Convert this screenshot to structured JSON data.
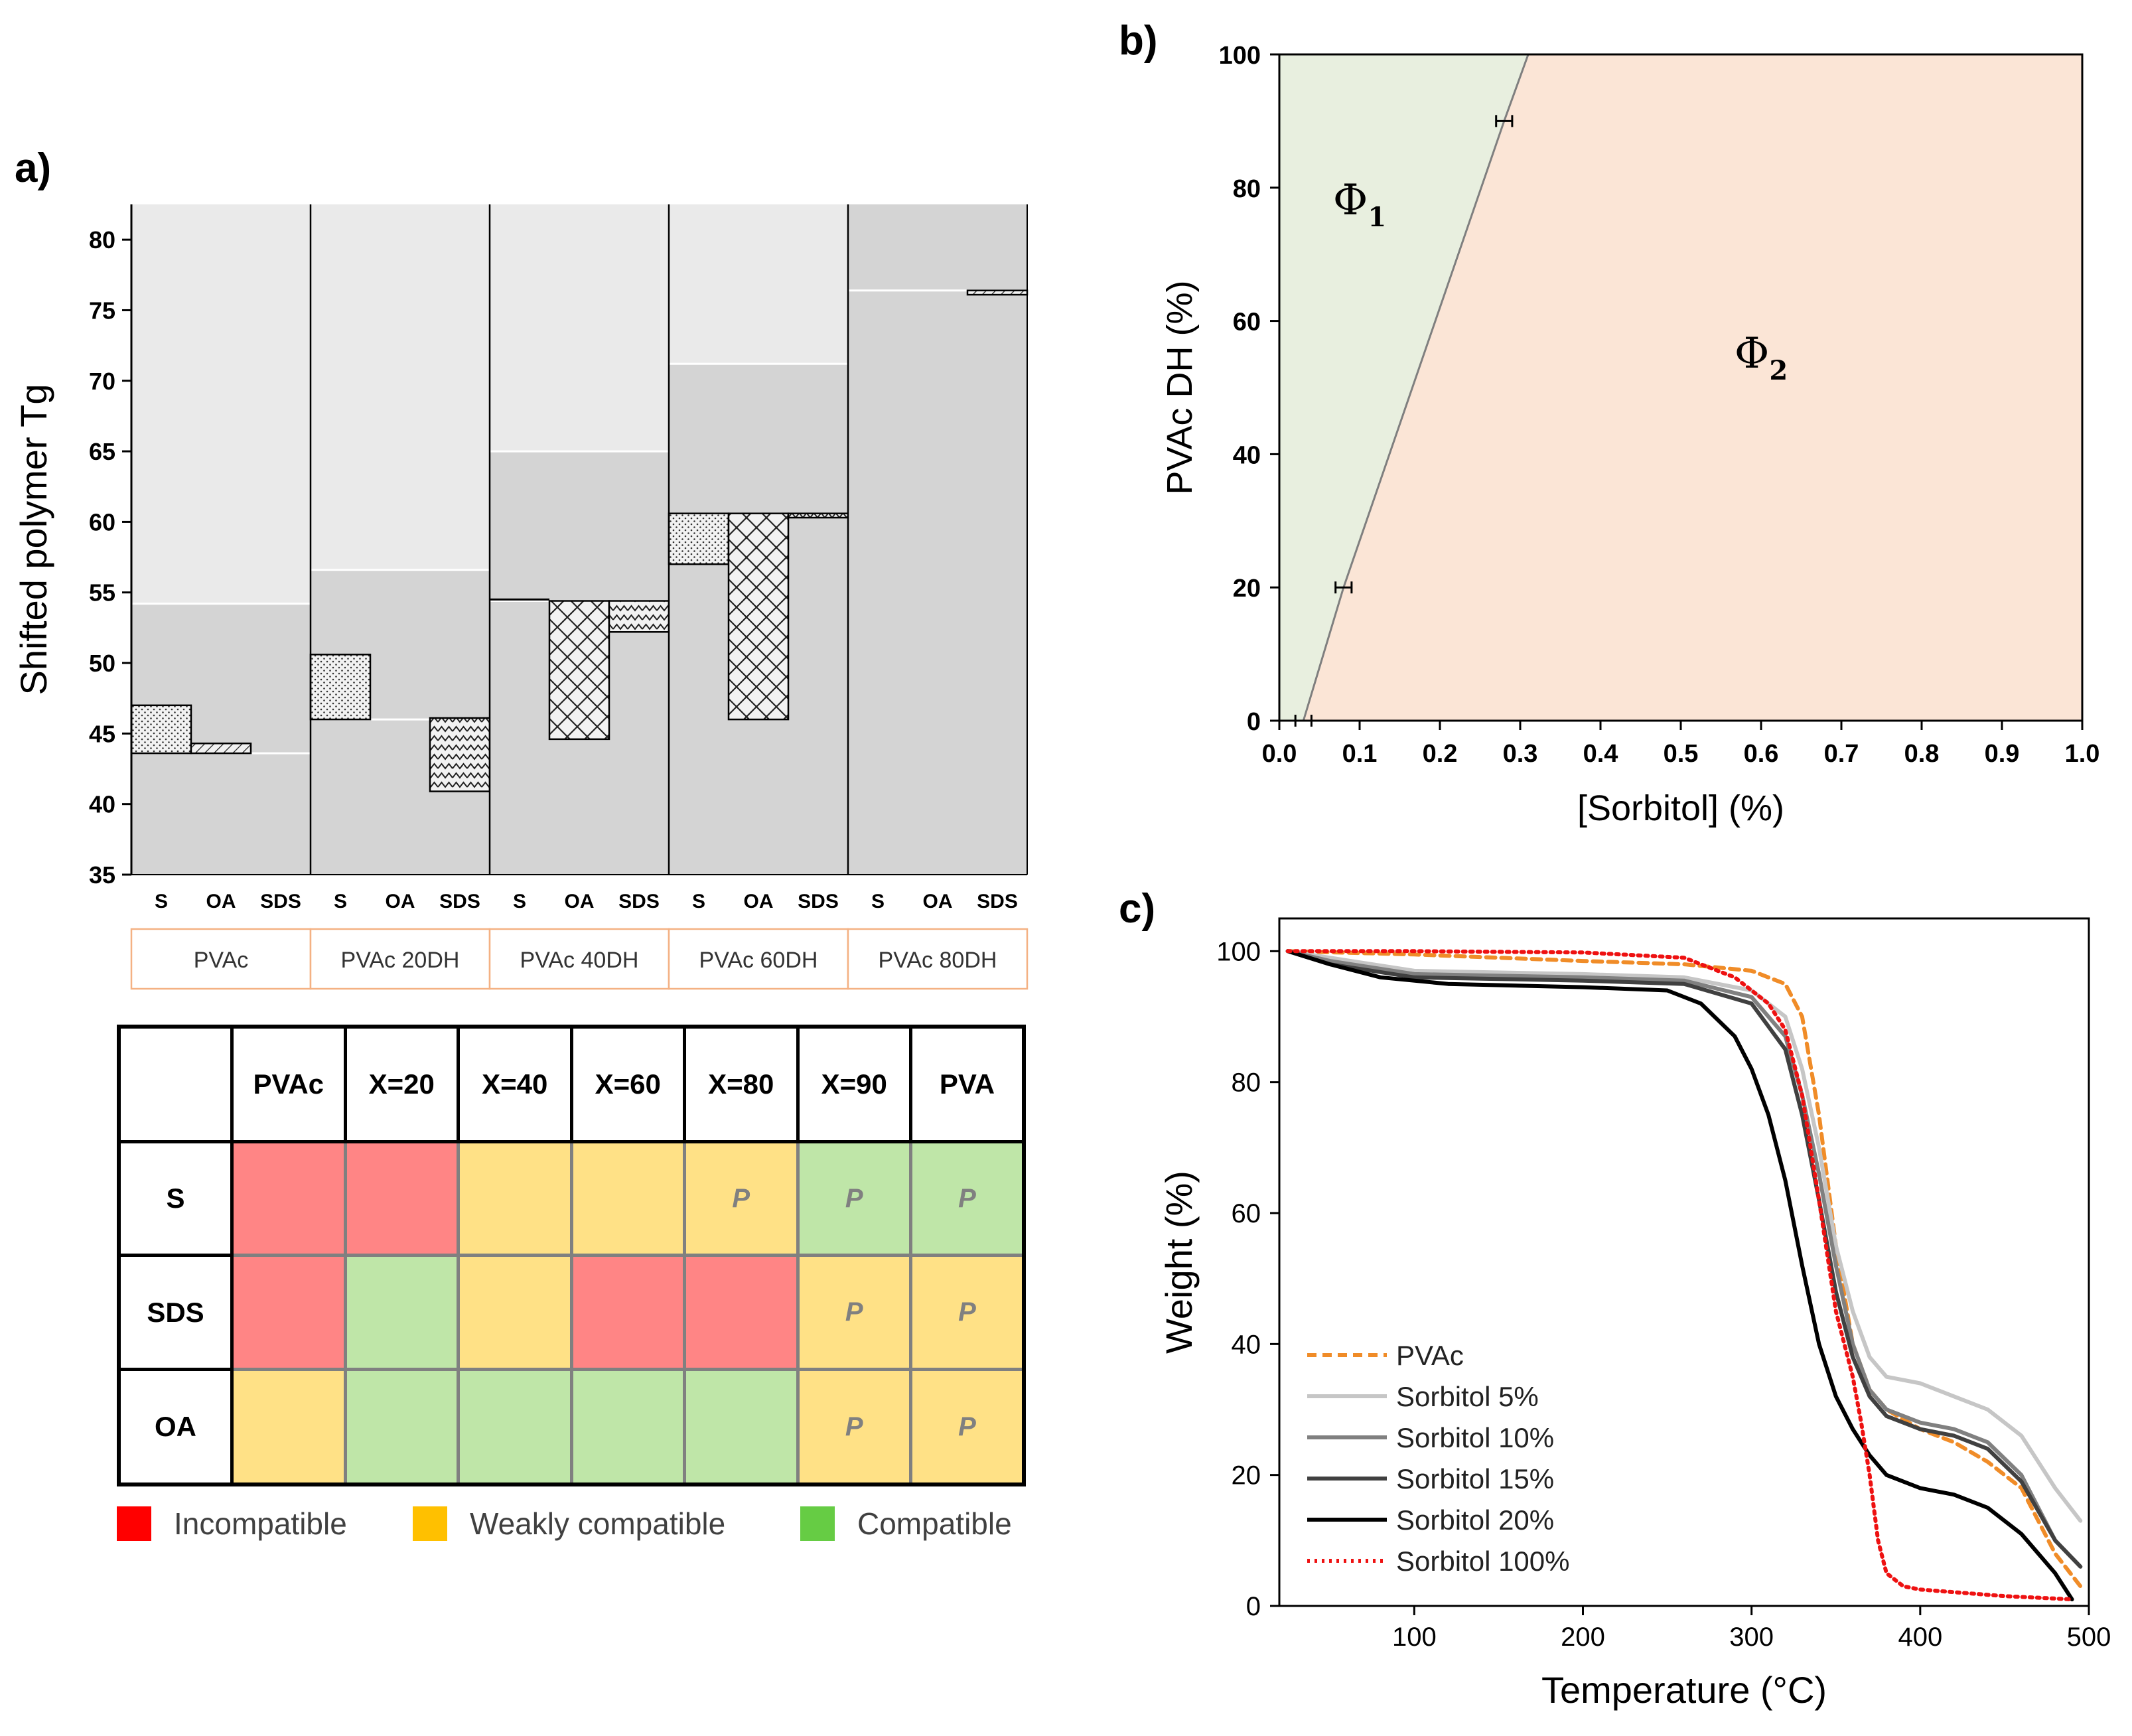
{
  "panels": {
    "a": "a)",
    "b": "b)",
    "c": "c)"
  },
  "chart_data": [
    {
      "id": "a",
      "type": "bar",
      "title": "",
      "ylabel": "Shifted polymer Tg",
      "ylim": [
        35,
        82.5
      ],
      "yticks": [
        35,
        40,
        45,
        50,
        55,
        60,
        65,
        70,
        75,
        80
      ],
      "bar_labels": [
        "S",
        "OA",
        "SDS"
      ],
      "groups": [
        {
          "name": "PVAc",
          "tg": 43.6,
          "upper": 54.2,
          "bars": [
            {
              "label": "S",
              "low": 43.6,
              "high": 47.0,
              "pattern": "dots"
            },
            {
              "label": "OA",
              "low": 43.6,
              "high": 44.3,
              "pattern": "hatch"
            },
            {
              "label": "SDS",
              "low": 43.6,
              "high": 43.6,
              "pattern": "none"
            }
          ]
        },
        {
          "name": "PVAc 20DH",
          "tg": 46.0,
          "upper": 56.6,
          "bars": [
            {
              "label": "S",
              "low": 46.0,
              "high": 50.6,
              "pattern": "dots"
            },
            {
              "label": "OA",
              "low": 46.0,
              "high": 46.0,
              "pattern": "none"
            },
            {
              "label": "SDS",
              "low": 40.9,
              "high": 46.1,
              "pattern": "wave"
            }
          ]
        },
        {
          "name": "PVAc 40DH",
          "tg": 54.4,
          "upper": 65.0,
          "bars": [
            {
              "label": "S",
              "low": 54.4,
              "high": 54.5,
              "pattern": "none"
            },
            {
              "label": "OA",
              "low": 44.6,
              "high": 54.4,
              "pattern": "brick"
            },
            {
              "label": "SDS",
              "low": 52.2,
              "high": 54.4,
              "pattern": "wave"
            }
          ]
        },
        {
          "name": "PVAc 60DH",
          "tg": 60.6,
          "upper": 71.2,
          "bars": [
            {
              "label": "S",
              "low": 57.0,
              "high": 60.6,
              "pattern": "dots"
            },
            {
              "label": "OA",
              "low": 46.0,
              "high": 60.6,
              "pattern": "brick"
            },
            {
              "label": "SDS",
              "low": 60.3,
              "high": 60.6,
              "pattern": "wave"
            }
          ]
        },
        {
          "name": "PVAc 80DH",
          "tg": 76.4,
          "upper": 82.5,
          "bars": [
            {
              "label": "S",
              "low": 76.4,
              "high": 76.4,
              "pattern": "none"
            },
            {
              "label": "OA",
              "low": 76.4,
              "high": 76.4,
              "pattern": "none"
            },
            {
              "label": "SDS",
              "low": 76.1,
              "high": 76.4,
              "pattern": "hatch"
            }
          ]
        }
      ]
    },
    {
      "id": "b",
      "type": "area",
      "xlabel": "[Sorbitol] (%)",
      "ylabel": "PVAc DH (%)",
      "xlim": [
        0.0,
        1.0
      ],
      "ylim": [
        0,
        100
      ],
      "xticks": [
        "0.0",
        "0.1",
        "0.2",
        "0.3",
        "0.4",
        "0.5",
        "0.6",
        "0.7",
        "0.8",
        "0.9",
        "1.0"
      ],
      "yticks": [
        0,
        20,
        40,
        60,
        80,
        100
      ],
      "boundary": [
        {
          "x": 0.03,
          "y": 0
        },
        {
          "x": 0.08,
          "y": 20
        },
        {
          "x": 0.28,
          "y": 90
        },
        {
          "x": 0.31,
          "y": 100
        }
      ],
      "error_points": [
        {
          "x": 0.03,
          "y": 0,
          "xerr": 0.01
        },
        {
          "x": 0.08,
          "y": 20,
          "xerr": 0.01
        },
        {
          "x": 0.28,
          "y": 90,
          "xerr": 0.01
        }
      ],
      "regions": [
        {
          "name": "Φ",
          "sub": "1",
          "color": "#e8efdf"
        },
        {
          "name": "Φ",
          "sub": "2",
          "color": "#fbe5d6"
        }
      ]
    },
    {
      "id": "c",
      "type": "line",
      "xlabel": "Temperature (°C)",
      "ylabel": "Weight (%)",
      "xlim": [
        20,
        500
      ],
      "ylim": [
        0,
        105
      ],
      "xticks": [
        100,
        200,
        300,
        400,
        500
      ],
      "yticks": [
        0,
        20,
        40,
        60,
        80,
        100
      ],
      "series": [
        {
          "name": "PVAc",
          "color": "#f08c28",
          "dash": "dash",
          "x": [
            25,
            100,
            200,
            260,
            300,
            320,
            330,
            340,
            350,
            360,
            370,
            380,
            400,
            420,
            440,
            460,
            480,
            495
          ],
          "y": [
            100,
            99.5,
            98.5,
            98,
            97,
            95,
            90,
            75,
            55,
            40,
            33,
            30,
            27,
            25,
            22,
            18,
            8,
            3
          ]
        },
        {
          "name": "Sorbitol 5%",
          "color": "#c6c6c6",
          "dash": "solid",
          "x": [
            25,
            50,
            100,
            200,
            260,
            300,
            320,
            330,
            340,
            350,
            360,
            370,
            380,
            400,
            420,
            440,
            460,
            480,
            495
          ],
          "y": [
            100,
            99,
            97,
            96.5,
            96,
            94,
            90,
            82,
            70,
            55,
            45,
            38,
            35,
            34,
            32,
            30,
            26,
            18,
            13
          ]
        },
        {
          "name": "Sorbitol 10%",
          "color": "#808080",
          "dash": "solid",
          "x": [
            25,
            50,
            100,
            200,
            260,
            300,
            320,
            330,
            340,
            350,
            360,
            370,
            380,
            400,
            420,
            440,
            460,
            480,
            495
          ],
          "y": [
            100,
            98.5,
            96.5,
            96,
            95.5,
            93,
            87,
            78,
            66,
            52,
            40,
            33,
            30,
            28,
            27,
            25,
            20,
            10,
            6
          ]
        },
        {
          "name": "Sorbitol 15%",
          "color": "#404040",
          "dash": "solid",
          "x": [
            25,
            50,
            100,
            200,
            260,
            300,
            320,
            330,
            340,
            350,
            360,
            370,
            380,
            400,
            420,
            440,
            460,
            480,
            495
          ],
          "y": [
            100,
            98,
            96,
            95.5,
            95,
            92,
            85,
            75,
            62,
            48,
            38,
            32,
            29,
            27,
            26,
            24,
            19,
            10,
            6
          ]
        },
        {
          "name": "Sorbitol 20%",
          "color": "#000000",
          "dash": "solid",
          "x": [
            25,
            50,
            80,
            120,
            200,
            250,
            270,
            290,
            300,
            310,
            320,
            330,
            340,
            350,
            360,
            370,
            380,
            400,
            420,
            440,
            460,
            480,
            490
          ],
          "y": [
            100,
            98,
            96,
            95,
            94.5,
            94,
            92,
            87,
            82,
            75,
            65,
            52,
            40,
            32,
            27,
            23,
            20,
            18,
            17,
            15,
            11,
            5,
            1
          ]
        },
        {
          "name": "Sorbitol 100%",
          "color": "#ee1111",
          "dash": "dot",
          "x": [
            25,
            100,
            200,
            260,
            290,
            310,
            320,
            330,
            340,
            350,
            360,
            365,
            370,
            375,
            380,
            390,
            400,
            450,
            490
          ],
          "y": [
            100,
            100,
            99.8,
            99,
            96,
            92,
            88,
            78,
            62,
            45,
            35,
            28,
            20,
            10,
            5,
            3,
            2.5,
            1.5,
            1
          ]
        }
      ]
    }
  ],
  "subgroup_labels": [
    "PVAc",
    "PVAc 20DH",
    "PVAc 40DH",
    "PVAc 60DH",
    "PVAc 80DH"
  ],
  "compat_table": {
    "headers": [
      "PVAc",
      "X=20",
      "X=40",
      "X=60",
      "X=80",
      "X=90",
      "PVA"
    ],
    "rows": [
      {
        "label": "S",
        "cells": [
          {
            "status": "incompatible",
            "text": ""
          },
          {
            "status": "incompatible",
            "text": ""
          },
          {
            "status": "weak",
            "text": ""
          },
          {
            "status": "weak",
            "text": ""
          },
          {
            "status": "weak",
            "text": "P"
          },
          {
            "status": "compatible",
            "text": "P"
          },
          {
            "status": "compatible",
            "text": "P"
          }
        ]
      },
      {
        "label": "SDS",
        "cells": [
          {
            "status": "incompatible",
            "text": ""
          },
          {
            "status": "compatible",
            "text": ""
          },
          {
            "status": "weak",
            "text": ""
          },
          {
            "status": "incompatible",
            "text": ""
          },
          {
            "status": "incompatible",
            "text": ""
          },
          {
            "status": "weak",
            "text": "P"
          },
          {
            "status": "weak",
            "text": "P"
          }
        ]
      },
      {
        "label": "OA",
        "cells": [
          {
            "status": "weak",
            "text": ""
          },
          {
            "status": "compatible",
            "text": ""
          },
          {
            "status": "compatible",
            "text": ""
          },
          {
            "status": "compatible",
            "text": ""
          },
          {
            "status": "compatible",
            "text": ""
          },
          {
            "status": "weak",
            "text": "P"
          },
          {
            "status": "weak",
            "text": "P"
          }
        ]
      }
    ],
    "cell_colors": {
      "incompatible": "#ff8585",
      "weak": "#ffe186",
      "compatible": "#bfe6a8"
    }
  },
  "legend": {
    "items": [
      {
        "label": "Incompatible",
        "color": "#ff0000"
      },
      {
        "label": "Weakly compatible",
        "color": "#ffc000"
      },
      {
        "label": "Compatible",
        "color": "#66cc44"
      }
    ]
  }
}
